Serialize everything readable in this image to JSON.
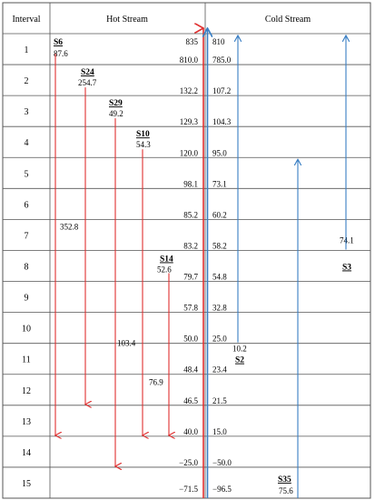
{
  "headers": {
    "interval": "Interval",
    "hot": "Hot Stream",
    "cold": "Cold Stream"
  },
  "intervals": [
    "1",
    "2",
    "3",
    "4",
    "5",
    "6",
    "7",
    "8",
    "9",
    "10",
    "11",
    "12",
    "13",
    "14",
    "15"
  ],
  "temperatures": [
    {
      "hot": "835",
      "cold": "810"
    },
    {
      "hot": "810.0",
      "cold": "785.0"
    },
    {
      "hot": "132.2",
      "cold": "107.2"
    },
    {
      "hot": "129.3",
      "cold": "104.3"
    },
    {
      "hot": "120.0",
      "cold": "95.0"
    },
    {
      "hot": "98.1",
      "cold": "73.1"
    },
    {
      "hot": "85.2",
      "cold": "60.2"
    },
    {
      "hot": "83.2",
      "cold": "58.2"
    },
    {
      "hot": "79.7",
      "cold": "54.8"
    },
    {
      "hot": "57.8",
      "cold": "32.8"
    },
    {
      "hot": "50.0",
      "cold": "25.0"
    },
    {
      "hot": "48.4",
      "cold": "23.4"
    },
    {
      "hot": "46.5",
      "cold": "21.5"
    },
    {
      "hot": "40.0",
      "cold": "15.0"
    },
    {
      "hot": "−25.0",
      "cold": "−50.0"
    },
    {
      "hot": "−71.5",
      "cold": "−96.5"
    }
  ],
  "hot_streams": [
    {
      "name": "S6",
      "value": "87.6",
      "start": 1,
      "end": 13,
      "label_value": "352.8"
    },
    {
      "name": "S24",
      "value": "254.7",
      "start": 2,
      "end": 12
    },
    {
      "name": "S29",
      "value": "49.2",
      "start": 3,
      "end": 14
    },
    {
      "name": "S10",
      "value": "54.3",
      "start": 4,
      "end": 13,
      "label_value": "103.4"
    },
    {
      "name": "S14",
      "value": "52.6",
      "start": 8,
      "end": 13,
      "label_value": "76.9"
    }
  ],
  "cold_streams": [
    {
      "name": "S2",
      "value": "10.2",
      "start": 10,
      "end": 1
    },
    {
      "name": "S3",
      "value": "74.1",
      "start": 7,
      "end": 1
    },
    {
      "name": "S35",
      "value": "75.6",
      "start": 15,
      "end": 5
    }
  ],
  "colors": {
    "hot": "#e03030",
    "cold": "#3a7fc4",
    "grid": "#555555"
  }
}
